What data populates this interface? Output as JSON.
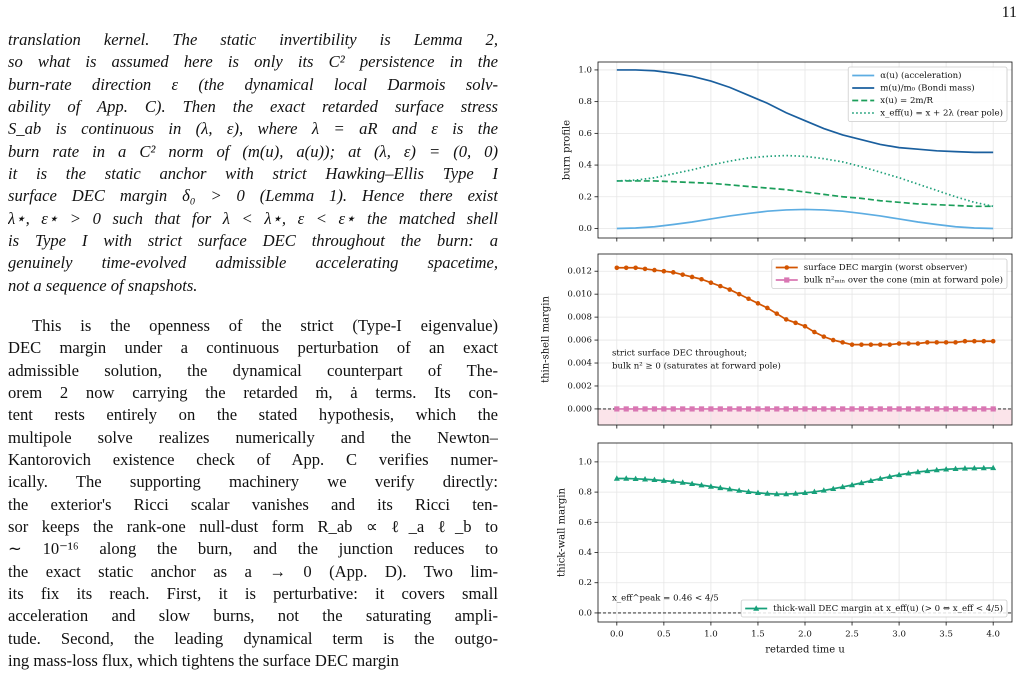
{
  "page_number": "11",
  "paragraphs": [
    {
      "style": "italic",
      "lines": [
        "translation kernel. The static invertibility is Lemma 2,",
        "so what is assumed here is only its C² persistence in the",
        "burn-rate direction ε (the dynamical local Darmois solv-",
        "ability of App. C). Then the exact retarded surface stress",
        "S_ab is continuous in (λ, ε), where λ = aR and ε is the",
        "burn rate in a C² norm of (m(u), a(u)); at (λ, ε) = (0, 0)",
        "it is the static anchor with strict Hawking–Ellis Type I",
        "surface DEC margin δ₀ > 0 (Lemma 1). Hence there exist",
        "λ⋆, ε⋆ > 0 such that for λ < λ⋆, ε < ε⋆ the matched shell",
        "is Type I with strict surface DEC throughout the burn: a",
        "genuinely time-evolved admissible accelerating spacetime,",
        "not a sequence of snapshots."
      ]
    },
    {
      "style": "normal",
      "lines": [
        "This is the openness of the strict (Type-I eigenvalue)",
        "DEC margin under a continuous perturbation of an exact",
        "admissible solution, the dynamical counterpart of The-",
        "orem 2 now carrying the retarded ṁ, ȧ terms. Its con-",
        "tent rests entirely on the stated hypothesis, which the",
        "multipole solve realizes numerically and the Newton–",
        "Kantorovich existence check of App. C verifies numer-",
        "ically.  The supporting machinery we verify directly:",
        "the exterior's Ricci scalar vanishes and its Ricci ten-",
        "sor keeps the rank-one null-dust form R_ab ∝ ℓ_a ℓ_b to",
        "∼ 10⁻¹⁶ along the burn, and the junction reduces to",
        "the exact static anchor as a → 0 (App. D). Two lim-",
        "its fix its reach. First, it is perturbative: it covers small",
        "acceleration and slow burns, not the saturating ampli-",
        "tude. Second, the leading dynamical term is the outgo-",
        "ing mass-loss flux, which tightens the surface DEC margin"
      ]
    }
  ],
  "chart_data": [
    {
      "type": "line",
      "ylabel": "burn profile",
      "legend": "upper right",
      "grid": true,
      "x": [
        0,
        0.2,
        0.4,
        0.6,
        0.8,
        1.0,
        1.2,
        1.4,
        1.6,
        1.8,
        2.0,
        2.2,
        2.4,
        2.6,
        2.8,
        3.0,
        3.2,
        3.4,
        3.6,
        3.8,
        4.0
      ],
      "xlim": [
        -0.2,
        4.2
      ],
      "xticks": [
        0,
        0.5,
        1,
        1.5,
        2,
        2.5,
        3,
        3.5,
        4
      ],
      "ylim": [
        -0.06,
        1.05
      ],
      "yticks": [
        {
          "value": 0,
          "label": "0.0"
        },
        {
          "value": 0.2,
          "label": "0.2"
        },
        {
          "value": 0.4,
          "label": "0.4"
        },
        {
          "value": 0.6,
          "label": "0.6"
        },
        {
          "value": 0.8,
          "label": "0.8"
        },
        {
          "value": 1,
          "label": "1.0"
        }
      ],
      "series": [
        {
          "name": "α(u) (acceleration)",
          "color": "#5dade2",
          "dash": "solid",
          "values": [
            0,
            0.003,
            0.011,
            0.025,
            0.041,
            0.06,
            0.079,
            0.095,
            0.109,
            0.117,
            0.12,
            0.117,
            0.109,
            0.095,
            0.079,
            0.06,
            0.041,
            0.025,
            0.011,
            0.003,
            0
          ]
        },
        {
          "name": "m(u)/m₀ (Bondi mass)",
          "color": "#1a5f9e",
          "dash": "solid",
          "values": [
            1.0,
            1.0,
            0.995,
            0.98,
            0.96,
            0.93,
            0.89,
            0.84,
            0.79,
            0.73,
            0.68,
            0.63,
            0.59,
            0.56,
            0.53,
            0.51,
            0.5,
            0.49,
            0.485,
            0.48,
            0.48
          ]
        },
        {
          "name": "x(u) = 2m/R",
          "color": "#1b9e5a",
          "dash": "dashed",
          "values": [
            0.3,
            0.3,
            0.3,
            0.295,
            0.29,
            0.285,
            0.275,
            0.265,
            0.255,
            0.245,
            0.23,
            0.215,
            0.2,
            0.19,
            0.175,
            0.165,
            0.155,
            0.15,
            0.145,
            0.14,
            0.14
          ]
        },
        {
          "name": "x_eff(u) = x + 2λ (rear pole)",
          "color": "#1fa07a",
          "dash": "dotted",
          "values": [
            0.3,
            0.305,
            0.32,
            0.345,
            0.37,
            0.4,
            0.425,
            0.445,
            0.455,
            0.46,
            0.455,
            0.44,
            0.42,
            0.39,
            0.355,
            0.32,
            0.28,
            0.24,
            0.2,
            0.165,
            0.14
          ]
        }
      ]
    },
    {
      "type": "line",
      "ylabel": "thin-shell margin",
      "legend": "upper right",
      "grid": true,
      "hline": 0,
      "shade_below": "#fbe4ea",
      "annotations": [
        "strict surface DEC throughout;",
        "bulk n² ≥ 0 (saturates at forward pole)"
      ],
      "x": [
        0,
        0.1,
        0.2,
        0.3,
        0.4,
        0.5,
        0.6,
        0.7,
        0.8,
        0.9,
        1.0,
        1.1,
        1.2,
        1.3,
        1.4,
        1.5,
        1.6,
        1.7,
        1.8,
        1.9,
        2.0,
        2.1,
        2.2,
        2.3,
        2.4,
        2.5,
        2.6,
        2.7,
        2.8,
        2.9,
        3.0,
        3.1,
        3.2,
        3.3,
        3.4,
        3.5,
        3.6,
        3.7,
        3.8,
        3.9,
        4.0
      ],
      "xlim": [
        -0.2,
        4.2
      ],
      "xticks": [
        0,
        0.5,
        1,
        1.5,
        2,
        2.5,
        3,
        3.5,
        4
      ],
      "ylim": [
        -0.0014,
        0.0135
      ],
      "yticks": [
        {
          "value": 0,
          "label": "0.000"
        },
        {
          "value": 0.002,
          "label": "0.002"
        },
        {
          "value": 0.004,
          "label": "0.004"
        },
        {
          "value": 0.006,
          "label": "0.006"
        },
        {
          "value": 0.008,
          "label": "0.008"
        },
        {
          "value": 0.01,
          "label": "0.010"
        },
        {
          "value": 0.012,
          "label": "0.012"
        }
      ],
      "series": [
        {
          "name": "surface DEC margin (worst observer)",
          "color": "#d35400",
          "dash": "solid",
          "marker": "circle",
          "values": [
            0.0123,
            0.0123,
            0.0123,
            0.0122,
            0.0121,
            0.012,
            0.0119,
            0.0117,
            0.0115,
            0.0113,
            0.011,
            0.0107,
            0.0104,
            0.01,
            0.0096,
            0.0092,
            0.0088,
            0.0083,
            0.0078,
            0.0075,
            0.0072,
            0.0067,
            0.0063,
            0.006,
            0.0058,
            0.0056,
            0.0056,
            0.0056,
            0.0056,
            0.0056,
            0.0057,
            0.0057,
            0.0057,
            0.0058,
            0.0058,
            0.0058,
            0.0058,
            0.0059,
            0.0059,
            0.0059,
            0.0059
          ]
        },
        {
          "name": "bulk n²ₘᵢₙ over the cone (min at forward pole)",
          "color": "#d977b3",
          "dash": "solid",
          "marker": "square",
          "values": [
            0,
            0,
            0,
            0,
            0,
            0,
            0,
            0,
            0,
            0,
            0,
            0,
            0,
            0,
            0,
            0,
            0,
            0,
            0,
            0,
            0,
            0,
            0,
            0,
            0,
            0,
            0,
            0,
            0,
            0,
            0,
            0,
            0,
            0,
            0,
            0,
            0,
            0,
            0,
            0,
            0
          ]
        }
      ]
    },
    {
      "type": "line",
      "ylabel": "thick-wall margin",
      "xlabel": "retarded time u",
      "legend": "lower right",
      "grid": true,
      "hline": 0,
      "annotations": [
        "x_eff^peak = 0.46 < 4/5"
      ],
      "x": [
        0,
        0.1,
        0.2,
        0.3,
        0.4,
        0.5,
        0.6,
        0.7,
        0.8,
        0.9,
        1.0,
        1.1,
        1.2,
        1.3,
        1.4,
        1.5,
        1.6,
        1.7,
        1.8,
        1.9,
        2.0,
        2.1,
        2.2,
        2.3,
        2.4,
        2.5,
        2.6,
        2.7,
        2.8,
        2.9,
        3.0,
        3.1,
        3.2,
        3.3,
        3.4,
        3.5,
        3.6,
        3.7,
        3.8,
        3.9,
        4.0
      ],
      "xlim": [
        -0.2,
        4.2
      ],
      "xticks": [
        {
          "value": 0,
          "label": "0.0"
        },
        {
          "value": 0.5,
          "label": "0.5"
        },
        {
          "value": 1,
          "label": "1.0"
        },
        {
          "value": 1.5,
          "label": "1.5"
        },
        {
          "value": 2,
          "label": "2.0"
        },
        {
          "value": 2.5,
          "label": "2.5"
        },
        {
          "value": 3,
          "label": "3.0"
        },
        {
          "value": 3.5,
          "label": "3.5"
        },
        {
          "value": 4,
          "label": "4.0"
        }
      ],
      "ylim": [
        -0.06,
        1.125
      ],
      "yticks": [
        {
          "value": 0,
          "label": "0.0"
        },
        {
          "value": 0.2,
          "label": "0.2"
        },
        {
          "value": 0.4,
          "label": "0.4"
        },
        {
          "value": 0.6,
          "label": "0.6"
        },
        {
          "value": 0.8,
          "label": "0.8"
        },
        {
          "value": 1,
          "label": "1.0"
        }
      ],
      "series": [
        {
          "name": "thick-wall DEC margin at x_eff(u)  (> 0 ⇔ x_eff < 4/5)",
          "color": "#17a07a",
          "dash": "solid",
          "marker": "triangle",
          "values": [
            0.89,
            0.89,
            0.888,
            0.885,
            0.881,
            0.876,
            0.87,
            0.863,
            0.855,
            0.846,
            0.837,
            0.828,
            0.819,
            0.81,
            0.802,
            0.795,
            0.79,
            0.787,
            0.787,
            0.79,
            0.795,
            0.802,
            0.811,
            0.822,
            0.834,
            0.847,
            0.861,
            0.875,
            0.889,
            0.902,
            0.914,
            0.924,
            0.933,
            0.94,
            0.946,
            0.951,
            0.954,
            0.957,
            0.958,
            0.959,
            0.96
          ]
        }
      ]
    }
  ]
}
